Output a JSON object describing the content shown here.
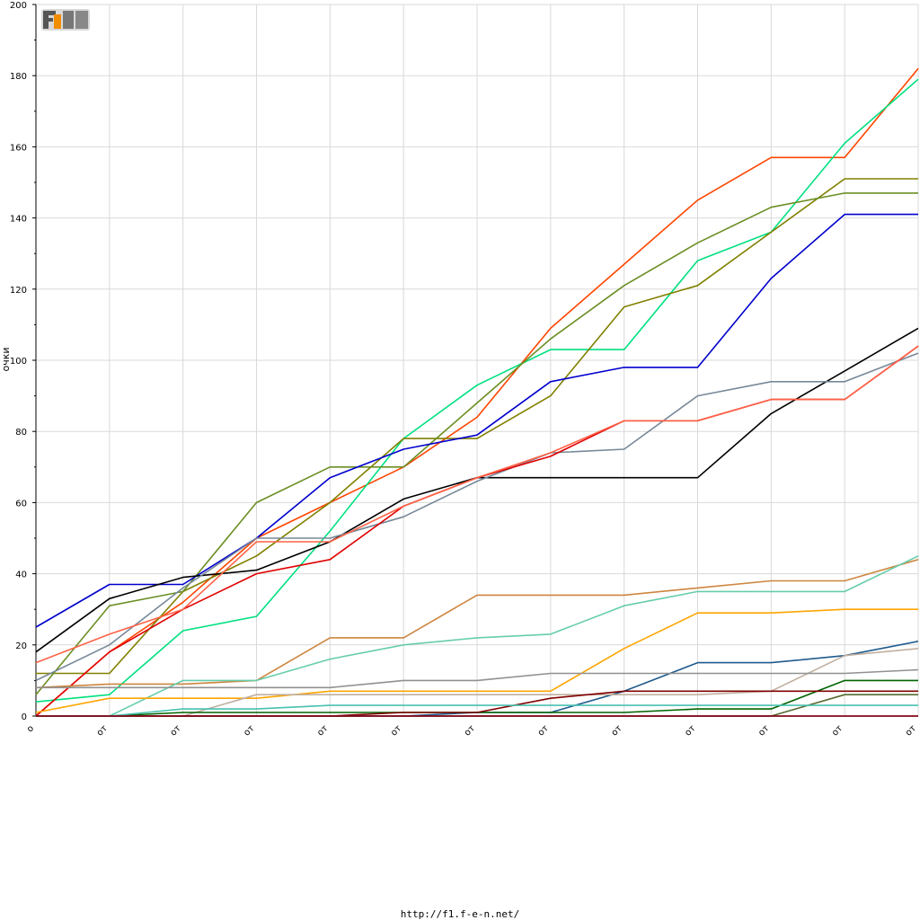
{
  "footer": {
    "url": "http://f1.f-e-n.net/"
  },
  "logo": {
    "text": "F1EN"
  },
  "chart_data": {
    "type": "line",
    "ylabel": "очки",
    "ylim": [
      0,
      200
    ],
    "yticks": [
      0,
      20,
      40,
      60,
      80,
      100,
      120,
      140,
      160,
      180,
      200
    ],
    "x": [
      "о",
      "от",
      "от",
      "от",
      "от",
      "от",
      "от",
      "от",
      "от",
      "от",
      "от",
      "от",
      "от"
    ],
    "grid": true,
    "series": [
      {
        "color": "#ff4500",
        "values": [
          0,
          18,
          32,
          50,
          60,
          70,
          84,
          109,
          127,
          145,
          157,
          157,
          182
        ]
      },
      {
        "color": "#00e080",
        "values": [
          4,
          6,
          24,
          28,
          52,
          78,
          93,
          103,
          103,
          128,
          136,
          161,
          179
        ]
      },
      {
        "color": "#808000",
        "values": [
          12,
          12,
          35,
          45,
          60,
          78,
          78,
          90,
          115,
          121,
          136,
          151,
          151
        ]
      },
      {
        "color": "#6b8e23",
        "values": [
          6,
          31,
          35,
          60,
          70,
          70,
          88,
          106,
          121,
          133,
          143,
          147,
          147
        ]
      },
      {
        "color": "#0000cd",
        "values": [
          25,
          37,
          37,
          50,
          67,
          75,
          79,
          94,
          98,
          98,
          123,
          141,
          141
        ]
      },
      {
        "color": "#000000",
        "values": [
          18,
          33,
          39,
          41,
          49,
          61,
          67,
          67,
          67,
          67,
          85,
          97,
          109
        ]
      },
      {
        "color": "#778899",
        "values": [
          10,
          20,
          36,
          50,
          50,
          56,
          66,
          74,
          75,
          90,
          94,
          94,
          102
        ]
      },
      {
        "color": "#e00000",
        "values": [
          0,
          18,
          30,
          40,
          44,
          59,
          67,
          73,
          83,
          83,
          89,
          89,
          104
        ]
      },
      {
        "color": "#ff6347",
        "values": [
          15,
          23,
          30,
          49,
          49,
          59,
          67,
          74,
          83,
          83,
          89,
          89,
          104
        ]
      },
      {
        "color": "#cd853f",
        "values": [
          8,
          9,
          9,
          10,
          22,
          22,
          34,
          34,
          34,
          36,
          38,
          38,
          44
        ]
      },
      {
        "color": "#66cdaa",
        "values": [
          0,
          0,
          10,
          10,
          16,
          20,
          22,
          23,
          31,
          35,
          35,
          35,
          45
        ]
      },
      {
        "color": "#ffa500",
        "values": [
          1,
          5,
          5,
          5,
          7,
          7,
          7,
          7,
          19,
          29,
          29,
          30,
          30
        ]
      },
      {
        "color": "#1e5a8c",
        "values": [
          0,
          0,
          0,
          0,
          0,
          0,
          1,
          1,
          7,
          15,
          15,
          17,
          21
        ]
      },
      {
        "color": "#c0b0a0",
        "values": [
          0,
          0,
          0,
          6,
          6,
          6,
          6,
          6,
          6,
          6,
          7,
          17,
          19
        ]
      },
      {
        "color": "#909090",
        "values": [
          8,
          8,
          8,
          8,
          8,
          10,
          10,
          12,
          12,
          12,
          12,
          12,
          13
        ]
      },
      {
        "color": "#006400",
        "values": [
          0,
          0,
          1,
          1,
          1,
          1,
          1,
          1,
          1,
          2,
          2,
          10,
          10
        ]
      },
      {
        "color": "#800000",
        "values": [
          0,
          0,
          0,
          0,
          0,
          1,
          1,
          5,
          7,
          7,
          7,
          7,
          7
        ]
      },
      {
        "color": "#556b2f",
        "values": [
          0,
          0,
          0,
          0,
          0,
          0,
          0,
          0,
          0,
          0,
          0,
          6,
          6
        ]
      },
      {
        "color": "#48c0b0",
        "values": [
          0,
          0,
          2,
          2,
          3,
          3,
          3,
          3,
          3,
          3,
          3,
          3,
          3
        ]
      },
      {
        "color": "#9932cc",
        "values": [
          0,
          0,
          0,
          0,
          0,
          0,
          0,
          0,
          0,
          0,
          0,
          0,
          0
        ]
      }
    ]
  }
}
